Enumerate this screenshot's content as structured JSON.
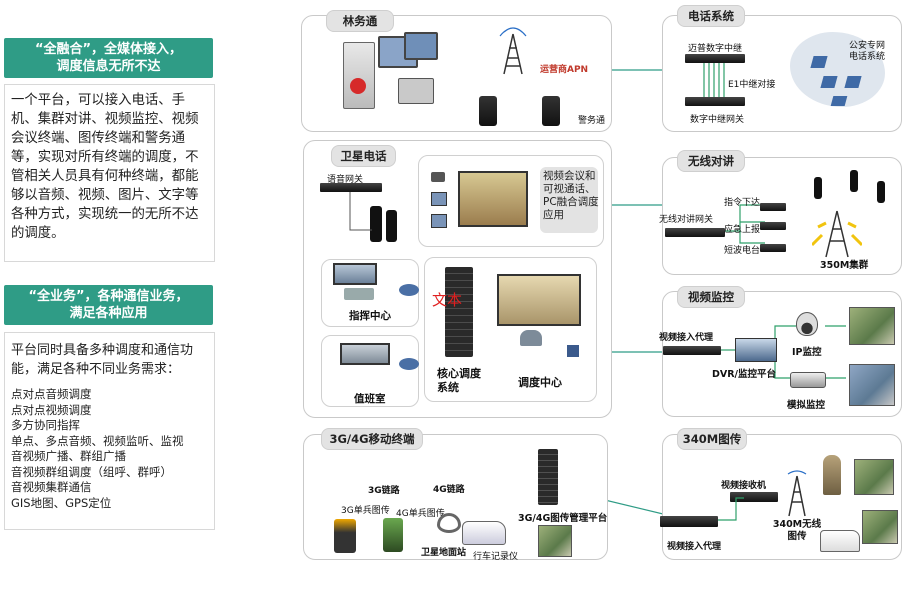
{
  "left": {
    "banner1": {
      "line1": "“全融合”，全媒体接入，",
      "line2": "调度信息无所不达"
    },
    "text1": "一个平台，可以接入电话、手机、集群对讲、视频监控、视频会议终端、图传终端和警务通等，实现对所有终端的调度，不管相关人员具有何种终端，都能够以音频、视频、图片、文字等各种方式，实现统一的无所不达的调度。",
    "banner2": {
      "line1": "“全业务”，各种通信业务，",
      "line2": "满足各种应用"
    },
    "text2_intro": "平台同时具备多种调度和通信功能，满足各种不同业务需求：",
    "text2_items": [
      "点对点音频调度",
      "点对点视频调度",
      "多方协同指挥",
      "单点、多点音频、视频监听、监视",
      "音视频广播、群组广播",
      "音视频群组调度（组呼、群呼）",
      "音视频集群通信",
      "GIS地图、GPS定位"
    ]
  },
  "linwu": {
    "title": "林务通",
    "apn": "运营商APN",
    "wut": "警务通"
  },
  "sat": {
    "title": "卫星电话",
    "voice_gw": "语音网关",
    "video_conf": "视频会议和可视通话、PC融合调度应用",
    "command": "指挥中心",
    "duty": "值班室",
    "core": "核心调度系统",
    "dispatch": "调度中心",
    "red_text": "文本"
  },
  "mobile": {
    "title": "3G/4G移动终端",
    "link3g": "3G链路",
    "link4g": "4G链路",
    "single3g": "3G单兵图传",
    "single4g": "4G单兵图传",
    "sat_station": "卫星地面站",
    "recorder": "行车记录仪",
    "platform": "3G/4G图传管理平台"
  },
  "phone": {
    "title": "电话系统",
    "relay": "迈普数字中继",
    "e1": "E1中继对接",
    "gateway": "数字中继网关",
    "police": "公安专网电话系统"
  },
  "radio": {
    "title": "无线对讲",
    "gw": "无线对讲网关",
    "cmd_down": "指令下达",
    "emergency": "应急上报",
    "shortwave": "短波电台",
    "cluster": "350M集群"
  },
  "video": {
    "title": "视频监控",
    "proxy": "视频接入代理",
    "dvr": "DVR/监控平台",
    "ip": "IP监控",
    "analog": "模拟监控"
  },
  "m340": {
    "title": "340M图传",
    "receiver": "视频接收机",
    "proxy": "视频接入代理",
    "wireless": "340M无线图传"
  },
  "colors": {
    "banner": "#2f9c86",
    "link": "#2f9c86",
    "wave": "#f1c40f",
    "dashed": "#5bb88a"
  }
}
